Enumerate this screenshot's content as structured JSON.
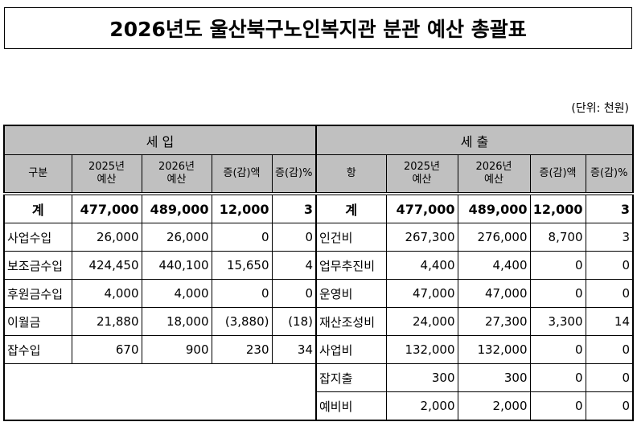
{
  "title": "2026년도 울산북구노인복지관 분관 예산 총괄표",
  "unit": "(단위: 천원)",
  "revenue": {
    "section": "세    입",
    "headers": [
      "구분",
      "2025년\n예산",
      "2026년\n예산",
      "증(감)액",
      "증(감)%"
    ],
    "total": [
      "계",
      "477,000",
      "489,000",
      "12,000",
      "3"
    ],
    "rows": [
      [
        "사업수입",
        "26,000",
        "26,000",
        "0",
        "0"
      ],
      [
        "보조금수입",
        "424,450",
        "440,100",
        "15,650",
        "4"
      ],
      [
        "후원금수입",
        "4,000",
        "4,000",
        "0",
        "0"
      ],
      [
        "이월금",
        "21,880",
        "18,000",
        "(3,880)",
        "(18)"
      ],
      [
        "잡수입",
        "670",
        "900",
        "230",
        "34"
      ]
    ]
  },
  "expenditure": {
    "section": "세    출",
    "headers": [
      "항",
      "2025년\n예산",
      "2026년\n예산",
      "증(감)액",
      "증(감)%"
    ],
    "total": [
      "계",
      "477,000",
      "489,000",
      "12,000",
      "3"
    ],
    "rows": [
      [
        "인건비",
        "267,300",
        "276,000",
        "8,700",
        "3"
      ],
      [
        "업무추진비",
        "4,400",
        "4,400",
        "0",
        "0"
      ],
      [
        "운영비",
        "47,000",
        "47,000",
        "0",
        "0"
      ],
      [
        "재산조성비",
        "24,000",
        "27,300",
        "3,300",
        "14"
      ],
      [
        "사업비",
        "132,000",
        "132,000",
        "0",
        "0"
      ],
      [
        "잡지출",
        "300",
        "300",
        "0",
        "0"
      ],
      [
        "예비비",
        "2,000",
        "2,000",
        "0",
        "0"
      ]
    ]
  }
}
